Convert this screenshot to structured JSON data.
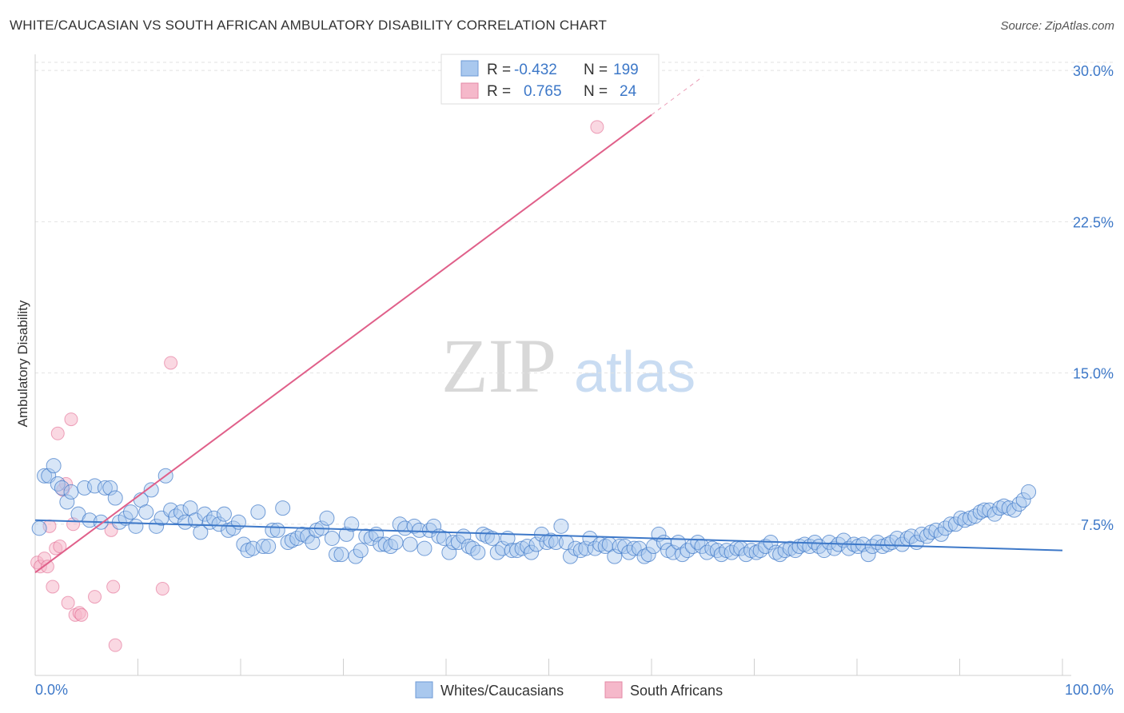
{
  "header": {
    "title": "WHITE/CAUCASIAN VS SOUTH AFRICAN AMBULATORY DISABILITY CORRELATION CHART",
    "source": "Source: ZipAtlas.com"
  },
  "watermark": {
    "zip": "ZIP",
    "atlas": "atlas"
  },
  "legend": {
    "r_label": "R =",
    "n_label": "N =",
    "rows": [
      {
        "r": "-0.432",
        "n": "199"
      },
      {
        "r": "0.765",
        "n": "24"
      }
    ]
  },
  "chart_data": {
    "type": "scatter",
    "title": "WHITE/CAUCASIAN VS SOUTH AFRICAN AMBULATORY DISABILITY CORRELATION CHART",
    "xlabel": "",
    "ylabel": "Ambulatory Disability",
    "xlim": [
      0,
      100
    ],
    "ylim": [
      0,
      30.8
    ],
    "x_tick_labels": [
      "0.0%",
      "100.0%"
    ],
    "y_ticks": [
      7.5,
      15.0,
      22.5,
      30.0
    ],
    "y_tick_labels": [
      "7.5%",
      "15.0%",
      "22.5%",
      "30.0%"
    ],
    "colors": {
      "blue": "#3d78c8",
      "blue_fill": "#a9c8ee",
      "pink": "#e0608a",
      "pink_fill": "#f5b8ca"
    },
    "series": [
      {
        "name": "Whites/Caucasians",
        "color": "#3d78c8",
        "trend": {
          "x0": 0,
          "y0": 7.7,
          "x1": 100,
          "y1": 6.2
        },
        "points": [
          [
            0.4,
            7.3
          ],
          [
            0.9,
            9.9
          ],
          [
            1.3,
            9.9
          ],
          [
            1.8,
            10.4
          ],
          [
            2.2,
            9.5
          ],
          [
            2.6,
            9.3
          ],
          [
            3.1,
            8.6
          ],
          [
            3.5,
            9.1
          ],
          [
            4.2,
            8.0
          ],
          [
            4.8,
            9.3
          ],
          [
            5.3,
            7.7
          ],
          [
            5.8,
            9.4
          ],
          [
            6.4,
            7.6
          ],
          [
            6.8,
            9.3
          ],
          [
            7.3,
            9.3
          ],
          [
            7.8,
            8.8
          ],
          [
            8.2,
            7.6
          ],
          [
            8.8,
            7.8
          ],
          [
            9.3,
            8.1
          ],
          [
            9.8,
            7.4
          ],
          [
            10.3,
            8.7
          ],
          [
            10.8,
            8.1
          ],
          [
            11.3,
            9.2
          ],
          [
            11.8,
            7.4
          ],
          [
            12.3,
            7.8
          ],
          [
            12.7,
            9.9
          ],
          [
            13.2,
            8.2
          ],
          [
            13.7,
            7.9
          ],
          [
            14.2,
            8.1
          ],
          [
            14.6,
            7.6
          ],
          [
            15.1,
            8.3
          ],
          [
            15.6,
            7.7
          ],
          [
            16.1,
            7.1
          ],
          [
            16.5,
            8.0
          ],
          [
            17.0,
            7.6
          ],
          [
            17.4,
            7.8
          ],
          [
            17.9,
            7.5
          ],
          [
            18.4,
            8.0
          ],
          [
            18.8,
            7.2
          ],
          [
            19.3,
            7.3
          ],
          [
            19.8,
            7.6
          ],
          [
            20.3,
            6.5
          ],
          [
            20.7,
            6.2
          ],
          [
            21.2,
            6.3
          ],
          [
            21.7,
            8.1
          ],
          [
            22.2,
            6.4
          ],
          [
            22.7,
            6.4
          ],
          [
            23.1,
            7.2
          ],
          [
            23.6,
            7.2
          ],
          [
            24.1,
            8.3
          ],
          [
            24.6,
            6.6
          ],
          [
            25.0,
            6.7
          ],
          [
            25.5,
            6.8
          ],
          [
            26.0,
            7.0
          ],
          [
            26.5,
            6.9
          ],
          [
            27.0,
            6.6
          ],
          [
            27.4,
            7.2
          ],
          [
            27.9,
            7.3
          ],
          [
            28.4,
            7.8
          ],
          [
            28.9,
            6.8
          ],
          [
            29.3,
            6.0
          ],
          [
            29.8,
            6.0
          ],
          [
            30.3,
            7.0
          ],
          [
            30.8,
            7.5
          ],
          [
            31.2,
            5.9
          ],
          [
            31.7,
            6.2
          ],
          [
            32.2,
            6.9
          ],
          [
            32.7,
            6.8
          ],
          [
            33.2,
            7.0
          ],
          [
            33.6,
            6.5
          ],
          [
            34.1,
            6.5
          ],
          [
            34.6,
            6.4
          ],
          [
            35.1,
            6.6
          ],
          [
            35.5,
            7.5
          ],
          [
            36.0,
            7.3
          ],
          [
            36.5,
            6.5
          ],
          [
            36.9,
            7.4
          ],
          [
            37.4,
            7.2
          ],
          [
            37.9,
            6.3
          ],
          [
            38.4,
            7.2
          ],
          [
            38.8,
            7.4
          ],
          [
            39.3,
            6.9
          ],
          [
            39.8,
            6.8
          ],
          [
            40.3,
            6.1
          ],
          [
            40.7,
            6.6
          ],
          [
            41.2,
            6.6
          ],
          [
            41.7,
            6.9
          ],
          [
            42.2,
            6.4
          ],
          [
            42.6,
            6.3
          ],
          [
            43.1,
            6.1
          ],
          [
            43.6,
            7.0
          ],
          [
            44.0,
            6.9
          ],
          [
            44.5,
            6.8
          ],
          [
            45.0,
            6.1
          ],
          [
            45.5,
            6.3
          ],
          [
            46.0,
            6.8
          ],
          [
            46.4,
            6.2
          ],
          [
            46.9,
            6.2
          ],
          [
            47.4,
            6.3
          ],
          [
            47.9,
            6.4
          ],
          [
            48.3,
            6.1
          ],
          [
            48.8,
            6.5
          ],
          [
            49.3,
            7.0
          ],
          [
            49.8,
            6.6
          ],
          [
            50.2,
            6.7
          ],
          [
            50.7,
            6.6
          ],
          [
            51.2,
            7.4
          ],
          [
            51.7,
            6.6
          ],
          [
            52.1,
            5.9
          ],
          [
            52.6,
            6.3
          ],
          [
            53.1,
            6.2
          ],
          [
            53.6,
            6.3
          ],
          [
            54.0,
            6.8
          ],
          [
            54.5,
            6.3
          ],
          [
            55.0,
            6.5
          ],
          [
            55.5,
            6.4
          ],
          [
            55.9,
            6.5
          ],
          [
            56.4,
            5.9
          ],
          [
            56.9,
            6.4
          ],
          [
            57.4,
            6.4
          ],
          [
            57.8,
            6.1
          ],
          [
            58.3,
            6.3
          ],
          [
            58.8,
            6.3
          ],
          [
            59.3,
            5.9
          ],
          [
            59.7,
            6.0
          ],
          [
            60.2,
            6.4
          ],
          [
            60.7,
            7.0
          ],
          [
            61.2,
            6.6
          ],
          [
            61.6,
            6.2
          ],
          [
            62.1,
            6.1
          ],
          [
            62.6,
            6.6
          ],
          [
            63.0,
            6.0
          ],
          [
            63.5,
            6.2
          ],
          [
            64.0,
            6.4
          ],
          [
            64.5,
            6.6
          ],
          [
            64.9,
            6.4
          ],
          [
            65.4,
            6.1
          ],
          [
            65.9,
            6.3
          ],
          [
            66.4,
            6.2
          ],
          [
            66.8,
            6.0
          ],
          [
            67.3,
            6.2
          ],
          [
            67.8,
            6.1
          ],
          [
            68.3,
            6.3
          ],
          [
            68.7,
            6.3
          ],
          [
            69.2,
            6.0
          ],
          [
            69.7,
            6.2
          ],
          [
            70.2,
            6.1
          ],
          [
            70.6,
            6.2
          ],
          [
            71.1,
            6.4
          ],
          [
            71.6,
            6.6
          ],
          [
            72.1,
            6.1
          ],
          [
            72.5,
            6.0
          ],
          [
            73.0,
            6.2
          ],
          [
            73.5,
            6.3
          ],
          [
            74.0,
            6.2
          ],
          [
            74.4,
            6.4
          ],
          [
            74.9,
            6.5
          ],
          [
            75.4,
            6.4
          ],
          [
            75.9,
            6.6
          ],
          [
            76.3,
            6.4
          ],
          [
            76.8,
            6.2
          ],
          [
            77.3,
            6.6
          ],
          [
            77.8,
            6.3
          ],
          [
            78.2,
            6.5
          ],
          [
            78.7,
            6.7
          ],
          [
            79.2,
            6.3
          ],
          [
            79.7,
            6.5
          ],
          [
            80.1,
            6.4
          ],
          [
            80.6,
            6.5
          ],
          [
            81.1,
            6.0
          ],
          [
            81.5,
            6.4
          ],
          [
            82.0,
            6.6
          ],
          [
            82.5,
            6.4
          ],
          [
            83.0,
            6.5
          ],
          [
            83.4,
            6.6
          ],
          [
            83.9,
            6.8
          ],
          [
            84.4,
            6.5
          ],
          [
            84.9,
            6.8
          ],
          [
            85.3,
            6.9
          ],
          [
            85.8,
            6.6
          ],
          [
            86.3,
            7.0
          ],
          [
            86.8,
            6.9
          ],
          [
            87.2,
            7.1
          ],
          [
            87.7,
            7.2
          ],
          [
            88.2,
            7.0
          ],
          [
            88.6,
            7.3
          ],
          [
            89.1,
            7.5
          ],
          [
            89.6,
            7.5
          ],
          [
            90.1,
            7.8
          ],
          [
            90.5,
            7.7
          ],
          [
            91.0,
            7.8
          ],
          [
            91.5,
            7.9
          ],
          [
            92.0,
            8.1
          ],
          [
            92.4,
            8.2
          ],
          [
            92.9,
            8.2
          ],
          [
            93.4,
            8.0
          ],
          [
            93.9,
            8.3
          ],
          [
            94.3,
            8.4
          ],
          [
            94.8,
            8.3
          ],
          [
            95.3,
            8.2
          ],
          [
            95.8,
            8.5
          ],
          [
            96.2,
            8.7
          ],
          [
            96.7,
            9.1
          ]
        ]
      },
      {
        "name": "South Africans",
        "color": "#e0608a",
        "trend": {
          "x0": 0,
          "y0": 5.1,
          "x1": 60,
          "y1": 27.8
        },
        "trend_dashed": {
          "x0": 60,
          "y0": 27.8,
          "x1": 65,
          "y1": 29.7
        },
        "points": [
          [
            0.2,
            5.6
          ],
          [
            0.5,
            5.4
          ],
          [
            0.9,
            5.8
          ],
          [
            1.2,
            5.4
          ],
          [
            1.4,
            7.4
          ],
          [
            1.7,
            4.4
          ],
          [
            2.0,
            6.3
          ],
          [
            2.2,
            12.0
          ],
          [
            2.4,
            6.4
          ],
          [
            2.7,
            9.2
          ],
          [
            3.0,
            9.5
          ],
          [
            3.2,
            3.6
          ],
          [
            3.5,
            12.7
          ],
          [
            3.7,
            7.5
          ],
          [
            3.9,
            3.0
          ],
          [
            4.3,
            3.1
          ],
          [
            4.5,
            3.0
          ],
          [
            5.8,
            3.9
          ],
          [
            7.4,
            7.2
          ],
          [
            7.6,
            4.4
          ],
          [
            7.8,
            1.5
          ],
          [
            12.4,
            4.3
          ],
          [
            13.2,
            15.5
          ],
          [
            54.7,
            27.2
          ]
        ]
      }
    ]
  },
  "bottom_legend": {
    "items": [
      {
        "label": "Whites/Caucasians"
      },
      {
        "label": "South Africans"
      }
    ]
  }
}
